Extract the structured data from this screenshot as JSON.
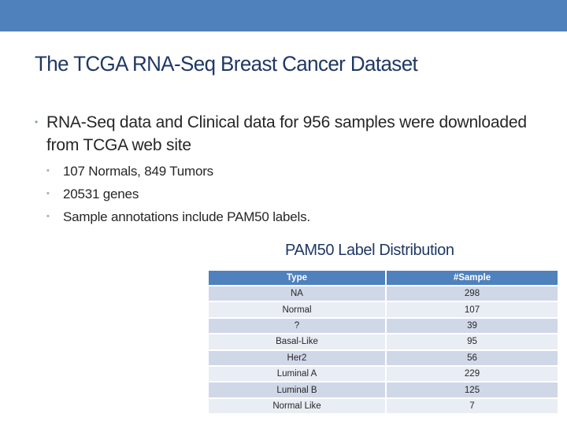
{
  "slide": {
    "title": "The TCGA RNA-Seq Breast Cancer Dataset",
    "accent_color": "#4f81bd",
    "title_color": "#1f3864"
  },
  "bullets": {
    "main": "RNA-Seq data and Clinical data for 956 samples were downloaded from TCGA web site",
    "sub": [
      "107 Normals, 849 Tumors",
      "20531 genes",
      "Sample annotations include PAM50 labels."
    ],
    "bullet_glyph": "•"
  },
  "table": {
    "title": "PAM50 Label Distribution",
    "headers": [
      "Type",
      "#Sample"
    ],
    "rows": [
      [
        "NA",
        "298"
      ],
      [
        "Normal",
        "107"
      ],
      [
        "?",
        "39"
      ],
      [
        "Basal-Like",
        "95"
      ],
      [
        "Her2",
        "56"
      ],
      [
        "Luminal A",
        "229"
      ],
      [
        "Luminal B",
        "125"
      ],
      [
        "Normal Like",
        "7"
      ]
    ]
  },
  "chart_data": {
    "type": "table",
    "title": "PAM50 Label Distribution",
    "columns": [
      "Type",
      "#Sample"
    ],
    "categories": [
      "NA",
      "Normal",
      "?",
      "Basal-Like",
      "Her2",
      "Luminal A",
      "Luminal B",
      "Normal Like"
    ],
    "values": [
      298,
      107,
      39,
      95,
      56,
      229,
      125,
      7
    ]
  }
}
